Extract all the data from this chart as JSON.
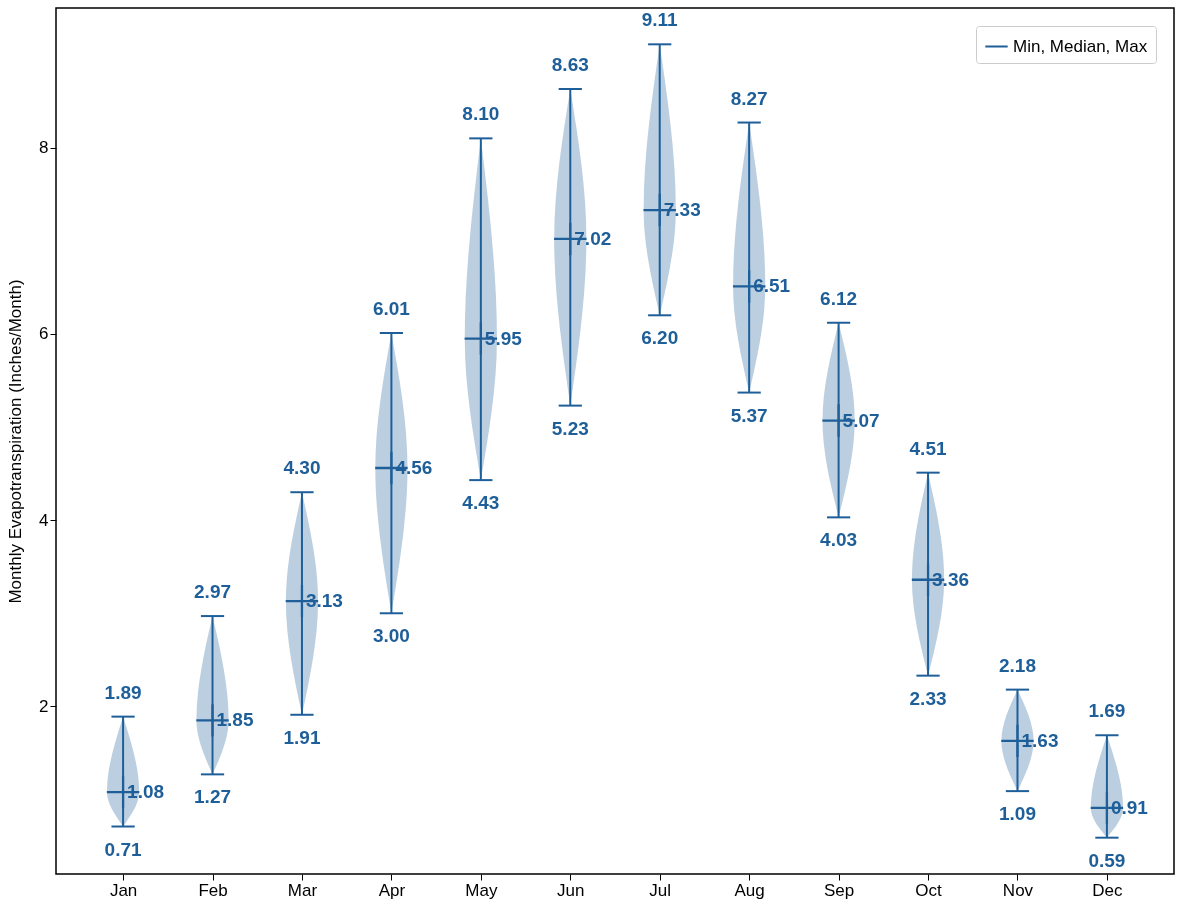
{
  "chart_data": {
    "type": "scatter",
    "ylabel": "Monthly Evapotranspiration (Inches/Month)",
    "categories": [
      "Jan",
      "Feb",
      "Mar",
      "Apr",
      "May",
      "Jun",
      "Jul",
      "Aug",
      "Sep",
      "Oct",
      "Nov",
      "Dec"
    ],
    "series": [
      {
        "name": "Min, Median, Max",
        "color": "#1f5f99",
        "values": [
          1.08,
          1.85,
          3.13,
          4.56,
          5.95,
          7.02,
          7.33,
          6.51,
          5.07,
          3.36,
          1.63,
          0.91
        ],
        "errors": [
          [
            0.71,
            1.89
          ],
          [
            1.27,
            2.97
          ],
          [
            1.91,
            4.3
          ],
          [
            3.0,
            6.01
          ],
          [
            4.43,
            8.1
          ],
          [
            5.23,
            8.63
          ],
          [
            6.2,
            9.11
          ],
          [
            5.37,
            8.27
          ],
          [
            4.03,
            6.12
          ],
          [
            2.33,
            4.51
          ],
          [
            1.09,
            2.18
          ],
          [
            0.59,
            1.69
          ]
        ]
      }
    ],
    "annotations": [
      {
        "text": "1.89",
        "x": "Jan",
        "y": 1.89
      },
      {
        "text": "0.71",
        "x": "Jan",
        "y": 0.71
      },
      {
        "text": "2.97",
        "x": "Feb",
        "y": 2.97
      },
      {
        "text": "1.27",
        "x": "Feb",
        "y": 1.27
      },
      {
        "text": "4.30",
        "x": "Mar",
        "y": 4.3
      },
      {
        "text": "1.91",
        "x": "Mar",
        "y": 1.91
      },
      {
        "text": "6.01",
        "x": "Apr",
        "y": 6.01
      },
      {
        "text": "3.00",
        "x": "Apr",
        "y": 3.0
      },
      {
        "text": "8.10",
        "x": "May",
        "y": 8.1
      },
      {
        "text": "4.43",
        "x": "May",
        "y": 4.43
      },
      {
        "text": "8.63",
        "x": "Jun",
        "y": 8.63
      },
      {
        "text": "5.23",
        "x": "Jun",
        "y": 5.23
      },
      {
        "text": "9.11",
        "x": "Jul",
        "y": 9.11
      },
      {
        "text": "6.20",
        "x": "Jul",
        "y": 6.2
      },
      {
        "text": "8.27",
        "x": "Aug",
        "y": 8.27
      },
      {
        "text": "5.37",
        "x": "Aug",
        "y": 5.37
      },
      {
        "text": "6.12",
        "x": "Sep",
        "y": 6.12
      },
      {
        "text": "4.03",
        "x": "Sep",
        "y": 4.03
      },
      {
        "text": "4.51",
        "x": "Oct",
        "y": 4.51
      },
      {
        "text": "2.33",
        "x": "Oct",
        "y": 2.33
      },
      {
        "text": "2.18",
        "x": "Nov",
        "y": 2.18
      },
      {
        "text": "1.09",
        "x": "Nov",
        "y": 1.09
      },
      {
        "text": "1.69",
        "x": "Dec",
        "y": 1.69
      },
      {
        "text": "0.59",
        "x": "Dec",
        "y": 0.59
      }
    ],
    "ylim": [
      0.2,
      9.5
    ],
    "yticks": [
      2,
      4,
      6,
      8
    ],
    "data_labels": true,
    "legend": "top right",
    "marker": "cross",
    "grid": false
  }
}
